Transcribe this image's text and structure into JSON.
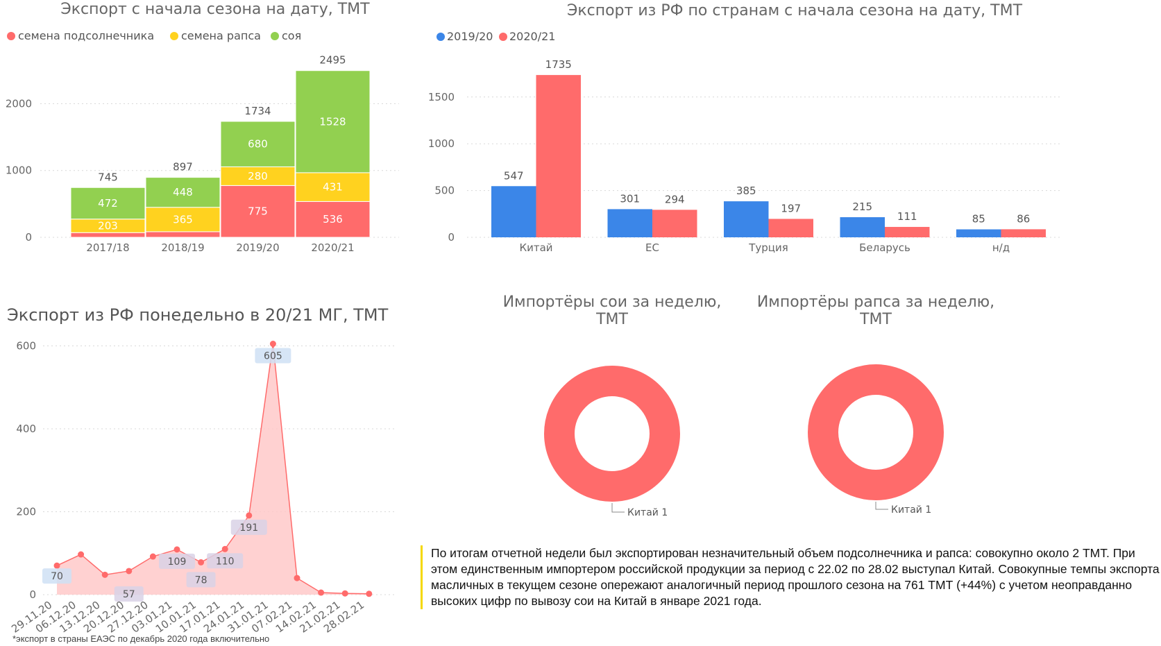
{
  "colors": {
    "sunflower": "#ff6b6b",
    "rapeseed": "#ffd21f",
    "soy": "#92d050",
    "blue": "#3b86e8",
    "red": "#ff6b6b",
    "area_fill": "#ffc9c9",
    "label_box": "#cfe0f5"
  },
  "chart_data": [
    {
      "id": "stacked",
      "type": "bar",
      "title": "Экспорт с начала сезона на дату, ТМТ",
      "legend": [
        "семена подсолнечника",
        "семена рапса",
        "соя"
      ],
      "categories": [
        "2017/18",
        "2018/19",
        "2019/20",
        "2020/21"
      ],
      "series": [
        {
          "name": "семена подсолнечника",
          "values": [
            70,
            84,
            775,
            536
          ],
          "labels": [
            "",
            "",
            "775",
            "536"
          ]
        },
        {
          "name": "семена рапса",
          "values": [
            203,
            365,
            280,
            431
          ],
          "labels": [
            "203",
            "365",
            "280",
            "431"
          ]
        },
        {
          "name": "соя",
          "values": [
            472,
            448,
            680,
            1528
          ],
          "labels": [
            "472",
            "448",
            "680",
            "1528"
          ]
        }
      ],
      "totals": [
        "745",
        "897",
        "1734",
        "2495"
      ],
      "yticks": [
        "0",
        "1000",
        "2000"
      ],
      "ylim": [
        0,
        2600
      ]
    },
    {
      "id": "countries",
      "type": "bar",
      "title": "Экспорт из РФ по странам с начала сезона на дату, ТМТ",
      "legend": [
        "2019/20",
        "2020/21"
      ],
      "categories": [
        "Китай",
        "ЕС",
        "Турция",
        "Беларусь",
        "н/д"
      ],
      "series": [
        {
          "name": "2019/20",
          "values": [
            547,
            301,
            385,
            215,
            85
          ],
          "labels": [
            "547",
            "301",
            "385",
            "215",
            "85"
          ]
        },
        {
          "name": "2020/21",
          "values": [
            1735,
            294,
            197,
            111,
            86
          ],
          "labels": [
            "1735",
            "294",
            "197",
            "111",
            "86"
          ]
        }
      ],
      "yticks": [
        "0",
        "500",
        "1000",
        "1500"
      ],
      "ylim": [
        0,
        1850
      ]
    },
    {
      "id": "weekly",
      "type": "area",
      "title": "Экспорт из РФ понедельно в 20/21 МГ, ТМТ",
      "x": [
        "29.11.20",
        "06.12.20",
        "13.12.20",
        "20.12.20",
        "27.12.20",
        "03.01.21",
        "10.01.21",
        "17.01.21",
        "24.01.21",
        "31.01.21",
        "07.02.21",
        "14.02.21",
        "21.02.21",
        "28.02.21"
      ],
      "values": [
        70,
        97,
        48,
        57,
        92,
        109,
        78,
        110,
        191,
        605,
        40,
        5,
        3,
        2
      ],
      "point_labels": [
        "70",
        "",
        "",
        "57",
        "",
        "109",
        "78",
        "110",
        "191",
        "605",
        "",
        "",
        "",
        ""
      ],
      "yticks": [
        "0",
        "200",
        "400",
        "600"
      ],
      "ylim": [
        0,
        640
      ]
    },
    {
      "id": "soy_importers",
      "type": "pie",
      "title_lines": [
        "Импортёры сои за неделю,",
        "ТМТ"
      ],
      "slices": [
        {
          "label": "Китай",
          "value": 1
        }
      ],
      "slice_label": "Китай 1"
    },
    {
      "id": "rapeseed_importers",
      "type": "pie",
      "title_lines": [
        "Импортёры рапса за неделю,",
        "ТМТ"
      ],
      "slices": [
        {
          "label": "Китай",
          "value": 1
        }
      ],
      "slice_label": "Китай 1"
    }
  ],
  "commentary": "По итогам отчетной недели был экспортирован незначительный объем подсолнечника и рапса: совокупно около 2 ТМТ. При этом единственным импортером российской продукции за период с 22.02 по 28.02 выступал Китай. Совокупные темпы экспорта масличных в текущем сезоне опережают аналогичный период прошлого сезона на 761 ТМТ (+44%) с учетом неоправданно высоких цифр по вывозу сои на Китай в январе 2021 года.",
  "footnote": "*экспорт в страны ЕАЭС по декабрь 2020 года включительно"
}
